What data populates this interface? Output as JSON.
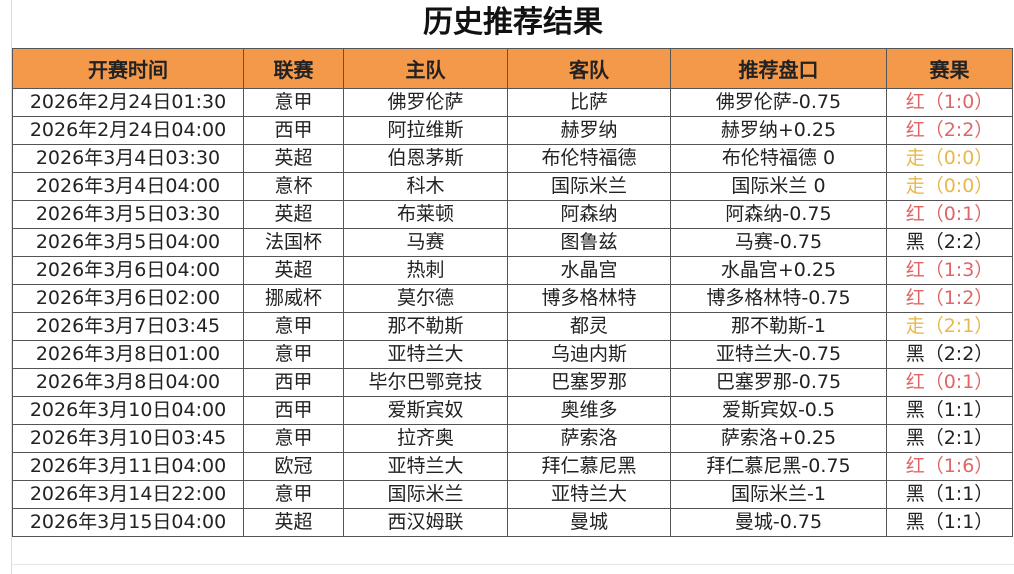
{
  "title": "历史推荐结果",
  "columns": [
    "开赛时间",
    "联赛",
    "主队",
    "客队",
    "推荐盘口",
    "赛果"
  ],
  "result_colors": {
    "红": "#e06666",
    "走": "#e8b84a",
    "黑": "#222222"
  },
  "header_color": "#f4984a",
  "rows": [
    [
      "2026年2月24日01:30",
      "意甲",
      "佛罗伦萨",
      "比萨",
      "佛罗伦萨-0.75",
      "红（1:0）"
    ],
    [
      "2026年2月24日04:00",
      "西甲",
      "阿拉维斯",
      "赫罗纳",
      "赫罗纳+0.25",
      "红（2:2）"
    ],
    [
      "2026年3月4日03:30",
      "英超",
      "伯恩茅斯",
      "布伦特福德",
      "布伦特福德 0",
      "走（0:0）"
    ],
    [
      "2026年3月4日04:00",
      "意杯",
      "科木",
      "国际米兰",
      "国际米兰 0",
      "走（0:0）"
    ],
    [
      "2026年3月5日03:30",
      "英超",
      "布莱顿",
      "阿森纳",
      "阿森纳-0.75",
      "红（0:1）"
    ],
    [
      "2026年3月5日04:00",
      "法国杯",
      "马赛",
      "图鲁兹",
      "马赛-0.75",
      "黑（2:2）"
    ],
    [
      "2026年3月6日04:00",
      "英超",
      "热刺",
      "水晶宫",
      "水晶宫+0.25",
      "红（1:3）"
    ],
    [
      "2026年3月6日02:00",
      "挪威杯",
      "莫尔德",
      "博多格林特",
      "博多格林特-0.75",
      "红（1:2）"
    ],
    [
      "2026年3月7日03:45",
      "意甲",
      "那不勒斯",
      "都灵",
      "那不勒斯-1",
      "走（2:1）"
    ],
    [
      "2026年3月8日01:00",
      "意甲",
      "亚特兰大",
      "乌迪内斯",
      "亚特兰大-0.75",
      "黑（2:2）"
    ],
    [
      "2026年3月8日04:00",
      "西甲",
      "毕尔巴鄂竞技",
      "巴塞罗那",
      "巴塞罗那-0.75",
      "红（0:1）"
    ],
    [
      "2026年3月10日04:00",
      "西甲",
      "爱斯宾奴",
      "奥维多",
      "爱斯宾奴-0.5",
      "黑（1:1）"
    ],
    [
      "2026年3月10日03:45",
      "意甲",
      "拉齐奥",
      "萨索洛",
      "萨索洛+0.25",
      "黑（2:1）"
    ],
    [
      "2026年3月11日04:00",
      "欧冠",
      "亚特兰大",
      "拜仁慕尼黑",
      "拜仁慕尼黑-0.75",
      "红（1:6）"
    ],
    [
      "2026年3月14日22:00",
      "意甲",
      "国际米兰",
      "亚特兰大",
      "国际米兰-1",
      "黑（1:1）"
    ],
    [
      "2026年3月15日04:00",
      "英超",
      "西汉姆联",
      "曼城",
      "曼城-0.75",
      "黑（1:1）"
    ]
  ]
}
